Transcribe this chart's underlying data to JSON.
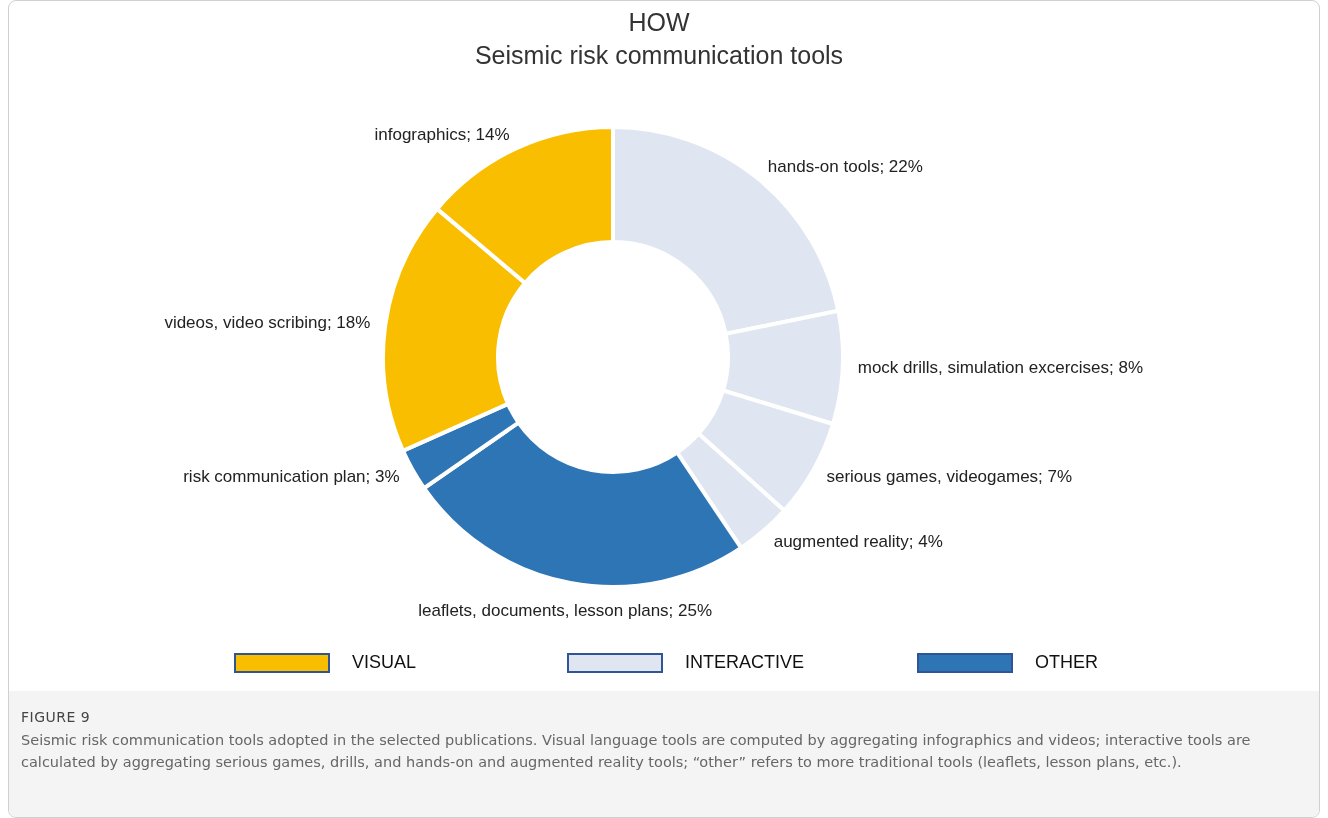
{
  "chart_data": {
    "type": "donut",
    "title": "HOW",
    "subtitle": "Seismic risk communication tools",
    "categories": [
      "hands-on tools",
      "mock drills, simulation excercises",
      "serious games, videogames",
      "augmented reality",
      "leaflets, documents, lesson plans",
      "risk communication plan",
      "videos, video scribing",
      "infographics"
    ],
    "values": [
      22,
      8,
      7,
      4,
      25,
      3,
      18,
      14
    ],
    "value_labels": [
      "22%",
      "8%",
      "7%",
      "4%",
      "25%",
      "3%",
      "18%",
      "14%"
    ],
    "colors": [
      "#dfe6f1",
      "#dfe6f1",
      "#dfe6f1",
      "#dfe6f1",
      "#2e75b6",
      "#2e75b6",
      "#f9be00",
      "#f9be00"
    ],
    "annotations": [
      "VISUAL",
      "INTERACTIVE",
      "OTHER",
      "FIGURE 9",
      "Seismic risk communication tools adopted in the selected publications. Visual language tools are computed by aggregating infographics and videos; interactive tools are calculated by aggregating serious games, drills, and hands-on and augmented reality tools; “other” refers to more traditional tools (leaflets, lesson plans, etc.)."
    ]
  }
}
